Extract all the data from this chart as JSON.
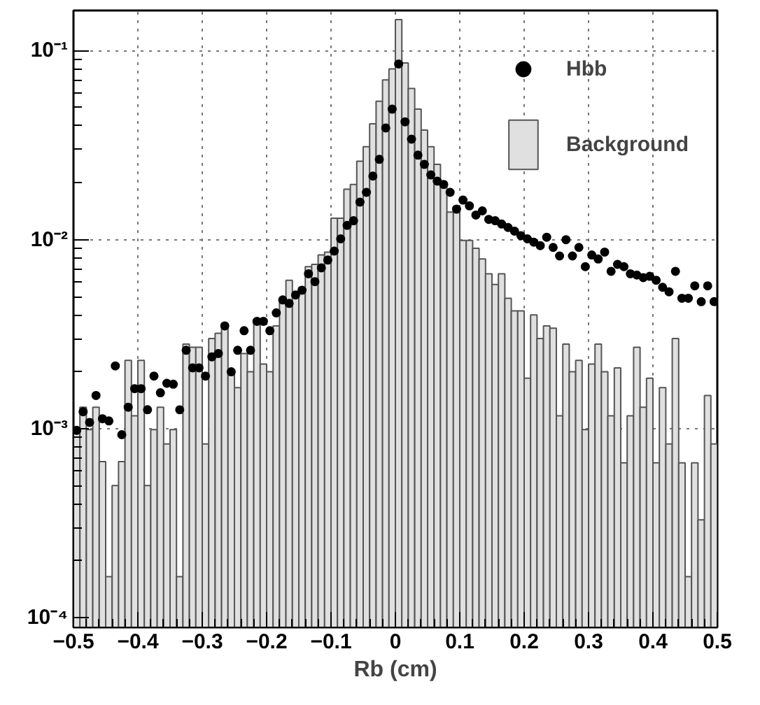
{
  "chart_data": {
    "type": "histogram",
    "xlabel": "Rb (cm)",
    "log": true,
    "grid": true,
    "legend": "top right",
    "xlim": [
      -0.5,
      0.5
    ],
    "ylim": [
      8.9e-05,
      0.163
    ],
    "xticks": [
      {
        "value": -0.5,
        "label": "−0.5"
      },
      {
        "value": -0.4,
        "label": "−0.4"
      },
      {
        "value": -0.3,
        "label": "−0.3"
      },
      {
        "value": -0.2,
        "label": "−0.2"
      },
      {
        "value": -0.1,
        "label": "−0.1"
      },
      0,
      0.1,
      0.2,
      0.3,
      0.4,
      0.5
    ],
    "yticks": [
      {
        "value": 0.0001,
        "label": "10⁻⁴"
      },
      {
        "value": 0.001,
        "label": "10⁻³"
      },
      {
        "value": 0.01,
        "label": "10⁻²"
      },
      {
        "value": 0.1,
        "label": "10⁻¹"
      }
    ],
    "series": [
      {
        "name": "Background",
        "color": "#e0e0e0",
        "bins": [
          -0.5,
          -0.49,
          -0.48,
          -0.47,
          -0.46,
          -0.45,
          -0.44,
          -0.43,
          -0.42,
          -0.41,
          -0.4,
          -0.39,
          -0.38,
          -0.37,
          -0.36,
          -0.35,
          -0.34,
          -0.33,
          -0.32,
          -0.31,
          -0.3,
          -0.29,
          -0.28,
          -0.27,
          -0.26,
          -0.25,
          -0.24,
          -0.23,
          -0.22,
          -0.21,
          -0.2,
          -0.19,
          -0.18,
          -0.17,
          -0.16,
          -0.15,
          -0.14,
          -0.13,
          -0.12,
          -0.11,
          -0.1,
          -0.09,
          -0.08,
          -0.07,
          -0.06,
          -0.05,
          -0.04,
          -0.03,
          -0.02,
          -0.01,
          0,
          0.01,
          0.02,
          0.03,
          0.04,
          0.05,
          0.06,
          0.07,
          0.08,
          0.09,
          0.1,
          0.11,
          0.12,
          0.13,
          0.14,
          0.15,
          0.16,
          0.17,
          0.18,
          0.19,
          0.2,
          0.21,
          0.22,
          0.23,
          0.24,
          0.25,
          0.26,
          0.27,
          0.28,
          0.29,
          0.3,
          0.31,
          0.32,
          0.33,
          0.34,
          0.35,
          0.36,
          0.37,
          0.38,
          0.39,
          0.4,
          0.41,
          0.42,
          0.43,
          0.44,
          0.45,
          0.46,
          0.47,
          0.48,
          0.49,
          0.5
        ],
        "values": [
          0.00099,
          0.0013,
          0.00099,
          0.0013,
          0.00067,
          0.000165,
          0.0005,
          0.00067,
          0.0023,
          0.00117,
          0.0023,
          0.0005,
          0.00099,
          0.0013,
          0.00083,
          0.00099,
          0.000165,
          0.0028,
          0.0027,
          0.0027,
          0.00083,
          0.003,
          0.0032,
          0.0036,
          0.002,
          0.00165,
          0.0025,
          0.002,
          0.0037,
          0.0022,
          0.002,
          0.0035,
          0.0049,
          0.0061,
          0.0053,
          0.0056,
          0.0072,
          0.0074,
          0.0083,
          0.0086,
          0.013,
          0.013,
          0.0185,
          0.0196,
          0.026,
          0.031,
          0.041,
          0.054,
          0.07,
          0.08,
          0.146,
          0.086,
          0.063,
          0.049,
          0.038,
          0.031,
          0.025,
          0.02,
          0.014,
          0.015,
          0.0099,
          0.0099,
          0.009,
          0.0079,
          0.0066,
          0.0058,
          0.0066,
          0.0049,
          0.0042,
          0.0042,
          0.00185,
          0.004,
          0.003,
          0.0035,
          0.0034,
          0.00117,
          0.0028,
          0.002,
          0.0023,
          0.00099,
          0.0022,
          0.0028,
          0.002,
          0.00117,
          0.0021,
          0.00066,
          0.00117,
          0.0027,
          0.0013,
          0.00185,
          0.00066,
          0.00165,
          0.00083,
          0.003,
          0.00066,
          0.000165,
          0.00066,
          0.00033,
          0.0015,
          0.00083
        ]
      },
      {
        "name": "Hbb",
        "type": "scatter",
        "marker": "circle",
        "color": "#000000",
        "x": [
          -0.495,
          -0.485,
          -0.475,
          -0.465,
          -0.455,
          -0.445,
          -0.435,
          -0.425,
          -0.415,
          -0.405,
          -0.395,
          -0.385,
          -0.375,
          -0.365,
          -0.355,
          -0.345,
          -0.335,
          -0.325,
          -0.315,
          -0.305,
          -0.295,
          -0.285,
          -0.275,
          -0.265,
          -0.255,
          -0.245,
          -0.235,
          -0.225,
          -0.215,
          -0.205,
          -0.195,
          -0.185,
          -0.175,
          -0.165,
          -0.155,
          -0.145,
          -0.135,
          -0.125,
          -0.115,
          -0.105,
          -0.095,
          -0.085,
          -0.075,
          -0.065,
          -0.055,
          -0.045,
          -0.035,
          -0.025,
          -0.015,
          -0.005,
          0.005,
          0.015,
          0.025,
          0.035,
          0.045,
          0.055,
          0.065,
          0.075,
          0.085,
          0.095,
          0.105,
          0.115,
          0.125,
          0.135,
          0.145,
          0.155,
          0.165,
          0.175,
          0.185,
          0.195,
          0.205,
          0.215,
          0.225,
          0.235,
          0.245,
          0.255,
          0.265,
          0.275,
          0.285,
          0.295,
          0.305,
          0.315,
          0.325,
          0.335,
          0.345,
          0.355,
          0.365,
          0.375,
          0.385,
          0.395,
          0.405,
          0.415,
          0.425,
          0.435,
          0.445,
          0.455,
          0.465,
          0.475,
          0.485,
          0.495
        ],
        "values": [
          0.00098,
          0.00123,
          0.00108,
          0.0015,
          0.00113,
          0.0011,
          0.00215,
          0.00093,
          0.0013,
          0.00163,
          0.00163,
          0.00126,
          0.0019,
          0.00155,
          0.00174,
          0.00172,
          0.00126,
          0.0026,
          0.0021,
          0.0021,
          0.0019,
          0.0024,
          0.0025,
          0.0035,
          0.002,
          0.0026,
          0.0033,
          0.0026,
          0.0037,
          0.0037,
          0.0033,
          0.0041,
          0.0048,
          0.0046,
          0.0051,
          0.0054,
          0.0066,
          0.006,
          0.0071,
          0.0078,
          0.0087,
          0.0101,
          0.0119,
          0.0126,
          0.0158,
          0.0178,
          0.0217,
          0.0266,
          0.039,
          0.049,
          0.085,
          0.042,
          0.034,
          0.028,
          0.025,
          0.022,
          0.0204,
          0.0196,
          0.0178,
          0.0145,
          0.0162,
          0.0151,
          0.0135,
          0.0142,
          0.0128,
          0.0126,
          0.0121,
          0.0116,
          0.0111,
          0.0105,
          0.0101,
          0.0097,
          0.0093,
          0.0103,
          0.0091,
          0.0082,
          0.01,
          0.0082,
          0.0091,
          0.0072,
          0.0083,
          0.0079,
          0.0086,
          0.0068,
          0.0074,
          0.0072,
          0.0066,
          0.0065,
          0.0063,
          0.0064,
          0.0061,
          0.0056,
          0.0053,
          0.0068,
          0.0049,
          0.0049,
          0.0057,
          0.0047,
          0.0057,
          0.0047
        ]
      }
    ]
  }
}
